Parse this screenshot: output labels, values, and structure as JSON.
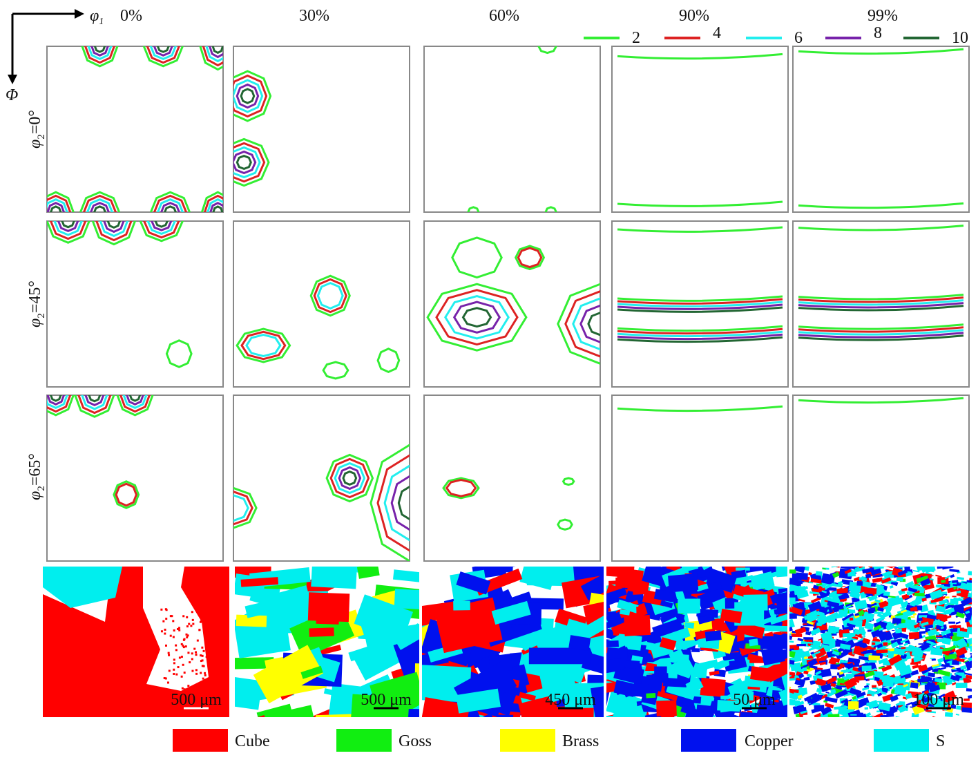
{
  "axes": {
    "horizontal": {
      "symbol": "φ",
      "sub": "1"
    },
    "vertical": "Φ"
  },
  "columns": [
    "0%",
    "30%",
    "60%",
    "90%",
    "99%"
  ],
  "rows": [
    {
      "symbol": "φ",
      "sub": "2",
      "text": "=0°"
    },
    {
      "symbol": "φ",
      "sub": "2",
      "text": "=45°"
    },
    {
      "symbol": "φ",
      "sub": "2",
      "text": "=65°"
    }
  ],
  "contour_legend": [
    {
      "level": 2,
      "color": "#33ee33"
    },
    {
      "level": 4,
      "color": "#dd2222"
    },
    {
      "level": 6,
      "color": "#22eeee"
    },
    {
      "level": 8,
      "color": "#7722aa"
    },
    {
      "level": 10,
      "color": "#226633"
    }
  ],
  "scale_bars": [
    "500 μm",
    "500 μm",
    "450 μm",
    "50 μm",
    "100 μm"
  ],
  "texture_legend": [
    {
      "name": "Cube",
      "color": "#ff0000"
    },
    {
      "name": "Goss",
      "color": "#11ee11"
    },
    {
      "name": "Brass",
      "color": "#ffff00"
    },
    {
      "name": "Copper",
      "color": "#0011ee"
    },
    {
      "name": "S",
      "color": "#00eeee"
    }
  ]
}
